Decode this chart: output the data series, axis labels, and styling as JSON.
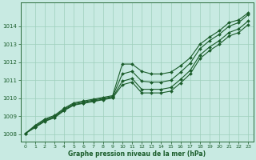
{
  "xlabel": "Graphe pression niveau de la mer (hPa)",
  "bg_color": "#c8eae2",
  "grid_color": "#9ecfbb",
  "line_color": "#1a5c2a",
  "spine_color": "#2a6b3a",
  "xlim": [
    -0.5,
    23.5
  ],
  "ylim": [
    1007.6,
    1015.3
  ],
  "yticks": [
    1008,
    1009,
    1010,
    1011,
    1012,
    1013,
    1014
  ],
  "xticks": [
    0,
    1,
    2,
    3,
    4,
    5,
    6,
    7,
    8,
    9,
    10,
    11,
    12,
    13,
    14,
    15,
    16,
    17,
    18,
    19,
    20,
    21,
    22,
    23
  ],
  "lines": [
    [
      1008.05,
      1008.5,
      1008.85,
      1009.05,
      1009.45,
      1009.75,
      1009.85,
      1009.95,
      1010.05,
      1010.15,
      1011.9,
      1011.9,
      1011.5,
      1011.35,
      1011.35,
      1011.45,
      1011.8,
      1012.25,
      1013.0,
      1013.4,
      1013.75,
      1014.2,
      1014.35,
      1014.75
    ],
    [
      1008.05,
      1008.45,
      1008.8,
      1009.0,
      1009.4,
      1009.7,
      1009.8,
      1009.9,
      1010.0,
      1010.1,
      1011.35,
      1011.5,
      1010.95,
      1010.9,
      1010.9,
      1011.0,
      1011.45,
      1011.95,
      1012.75,
      1013.2,
      1013.55,
      1014.0,
      1014.2,
      1014.65
    ],
    [
      1008.05,
      1008.4,
      1008.75,
      1008.95,
      1009.35,
      1009.65,
      1009.75,
      1009.85,
      1009.95,
      1010.05,
      1010.95,
      1011.1,
      1010.5,
      1010.5,
      1010.5,
      1010.6,
      1011.05,
      1011.55,
      1012.4,
      1012.85,
      1013.2,
      1013.65,
      1013.85,
      1014.3
    ],
    [
      1008.05,
      1008.38,
      1008.72,
      1008.92,
      1009.32,
      1009.62,
      1009.72,
      1009.82,
      1009.92,
      1010.02,
      1010.75,
      1010.9,
      1010.3,
      1010.3,
      1010.3,
      1010.4,
      1010.85,
      1011.35,
      1012.2,
      1012.65,
      1013.0,
      1013.45,
      1013.65,
      1014.1
    ]
  ]
}
